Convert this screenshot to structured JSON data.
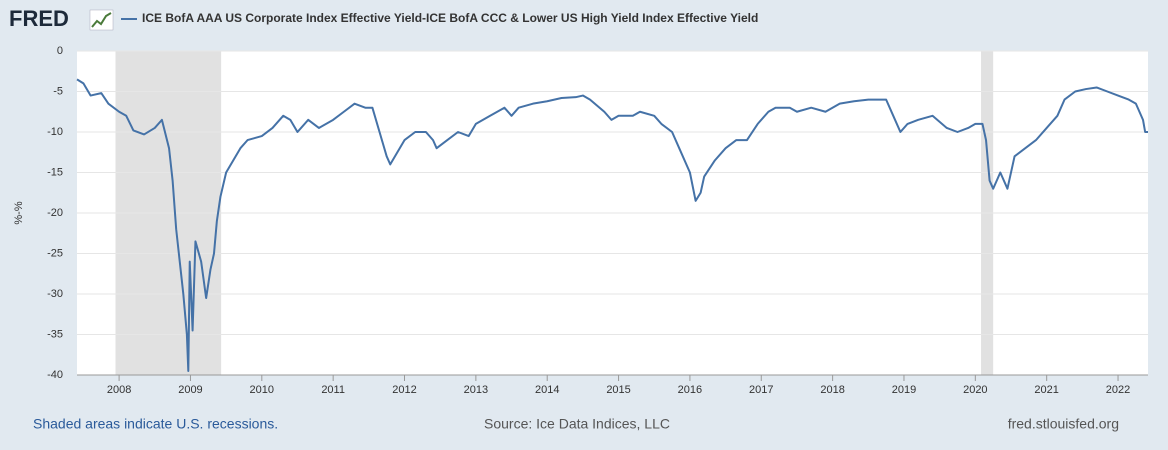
{
  "chart_data": {
    "type": "line",
    "logo": "FRED",
    "ylabel": "%-%",
    "note": "Shaded areas indicate U.S. recessions.",
    "source": "Source: Ice Data Indices, LLC",
    "url": "fred.stlouisfed.org",
    "xlim": [
      2007.41,
      2022.42
    ],
    "xticks": [
      2008,
      2009,
      2010,
      2011,
      2012,
      2013,
      2014,
      2015,
      2016,
      2017,
      2018,
      2019,
      2020,
      2021,
      2022
    ],
    "ylim": [
      -40,
      0
    ],
    "yticks": [
      0,
      -5,
      -10,
      -15,
      -20,
      -25,
      -30,
      -35,
      -40
    ],
    "grid": true,
    "recessions": [
      {
        "start": 2007.95,
        "end": 2009.43
      },
      {
        "start": 2020.08,
        "end": 2020.25
      }
    ],
    "series": [
      {
        "name": "ICE BofA AAA US Corporate Index Effective Yield-ICE BofA CCC & Lower US High Yield Index Effective Yield",
        "color": "#4572a7",
        "x": [
          2007.41,
          2007.5,
          2007.6,
          2007.75,
          2007.85,
          2008.0,
          2008.1,
          2008.2,
          2008.35,
          2008.5,
          2008.6,
          2008.7,
          2008.75,
          2008.8,
          2008.85,
          2008.9,
          2008.95,
          2008.97,
          2008.99,
          2009.03,
          2009.07,
          2009.15,
          2009.22,
          2009.28,
          2009.33,
          2009.37,
          2009.42,
          2009.5,
          2009.6,
          2009.7,
          2009.8,
          2010.0,
          2010.15,
          2010.3,
          2010.4,
          2010.5,
          2010.65,
          2010.8,
          2011.0,
          2011.15,
          2011.3,
          2011.45,
          2011.55,
          2011.65,
          2011.75,
          2011.8,
          2011.9,
          2012.0,
          2012.15,
          2012.3,
          2012.4,
          2012.45,
          2012.6,
          2012.75,
          2012.9,
          2013.0,
          2013.2,
          2013.4,
          2013.5,
          2013.6,
          2013.8,
          2014.0,
          2014.2,
          2014.4,
          2014.5,
          2014.6,
          2014.8,
          2014.9,
          2015.0,
          2015.2,
          2015.3,
          2015.5,
          2015.6,
          2015.75,
          2015.85,
          2016.0,
          2016.08,
          2016.15,
          2016.2,
          2016.35,
          2016.5,
          2016.65,
          2016.8,
          2016.95,
          2017.1,
          2017.2,
          2017.4,
          2017.5,
          2017.7,
          2017.9,
          2018.1,
          2018.3,
          2018.5,
          2018.75,
          2018.85,
          2018.95,
          2019.05,
          2019.2,
          2019.4,
          2019.6,
          2019.75,
          2019.9,
          2020.0,
          2020.1,
          2020.15,
          2020.2,
          2020.25,
          2020.3,
          2020.35,
          2020.45,
          2020.55,
          2020.7,
          2020.85,
          2021.0,
          2021.15,
          2021.25,
          2021.4,
          2021.55,
          2021.7,
          2021.85,
          2022.0,
          2022.15,
          2022.25,
          2022.35,
          2022.38,
          2022.42
        ],
        "values": [
          -3.5,
          -4,
          -5.5,
          -5.2,
          -6.5,
          -7.5,
          -8,
          -9.8,
          -10.3,
          -9.5,
          -8.5,
          -12,
          -16,
          -22,
          -26,
          -30,
          -35,
          -39.5,
          -26,
          -34.5,
          -23.5,
          -26,
          -30.5,
          -27,
          -25,
          -21,
          -18,
          -15,
          -13.5,
          -12,
          -11,
          -10.5,
          -9.5,
          -8,
          -8.5,
          -10,
          -8.5,
          -9.5,
          -8.5,
          -7.5,
          -6.5,
          -7,
          -7,
          -10,
          -13,
          -14,
          -12.5,
          -11,
          -10,
          -10,
          -11,
          -12,
          -11,
          -10,
          -10.5,
          -9,
          -8,
          -7,
          -8,
          -7,
          -6.5,
          -6.2,
          -5.8,
          -5.7,
          -5.5,
          -6,
          -7.5,
          -8.5,
          -8,
          -8,
          -7.5,
          -8,
          -9,
          -10,
          -12,
          -15,
          -18.5,
          -17.5,
          -15.5,
          -13.5,
          -12,
          -11,
          -11,
          -9,
          -7.5,
          -7,
          -7,
          -7.5,
          -7,
          -7.5,
          -6.5,
          -6.2,
          -6,
          -6,
          -8,
          -10,
          -9,
          -8.5,
          -8,
          -9.5,
          -10,
          -9.5,
          -9,
          -9,
          -11,
          -16,
          -17,
          -16,
          -15,
          -17,
          -13,
          -12,
          -11,
          -9.5,
          -8,
          -6,
          -5,
          -4.7,
          -4.5,
          -5,
          -5.5,
          -6,
          -6.5,
          -8.5,
          -10,
          -10
        ]
      }
    ]
  }
}
